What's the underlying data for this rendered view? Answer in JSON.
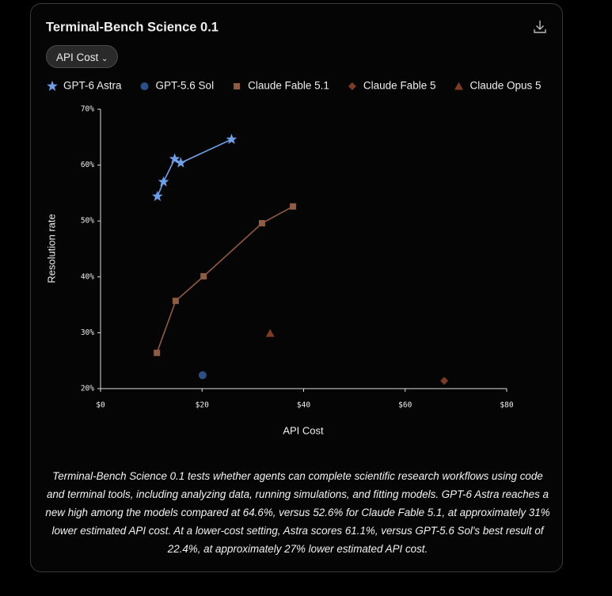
{
  "chart_data": {
    "type": "scatter",
    "title": "Terminal-Bench Science 0.1",
    "xlabel": "API Cost",
    "ylabel": "Resolution rate",
    "xlim": [
      0,
      80
    ],
    "xticks": [
      {
        "value": 0,
        "label": "$0"
      },
      {
        "value": 20,
        "label": "$20"
      },
      {
        "value": 40,
        "label": "$40"
      },
      {
        "value": 60,
        "label": "$60"
      },
      {
        "value": 80,
        "label": "$80"
      }
    ],
    "ylim": [
      20,
      70
    ],
    "yticks": [
      {
        "value": 20,
        "label": "20%"
      },
      {
        "value": 30,
        "label": "30%"
      },
      {
        "value": 40,
        "label": "40%"
      },
      {
        "value": 50,
        "label": "50%"
      },
      {
        "value": 60,
        "label": "60%"
      },
      {
        "value": 70,
        "label": "70%"
      }
    ],
    "grid": false,
    "series": [
      {
        "name": "GPT-6 Astra",
        "color": "#6f9fe6",
        "marker": "star",
        "line": true,
        "x": [
          11.2,
          12.4,
          14.6,
          15.8,
          25.8
        ],
        "values": [
          54.4,
          57.0,
          61.1,
          60.4,
          64.6
        ]
      },
      {
        "name": "GPT-5.6 Sol",
        "color": "#2d4f85",
        "marker": "circle",
        "line": false,
        "x": [
          20.1
        ],
        "values": [
          22.4
        ]
      },
      {
        "name": "Claude Fable 5.1",
        "color": "#8e5b45",
        "marker": "square",
        "line": true,
        "x": [
          11.1,
          14.8,
          20.3,
          31.8,
          37.9
        ],
        "values": [
          26.4,
          35.7,
          40.1,
          49.6,
          52.6
        ]
      },
      {
        "name": "Claude Fable 5",
        "color": "#7d3b26",
        "marker": "diamond",
        "line": false,
        "x": [
          67.7
        ],
        "values": [
          21.4
        ]
      },
      {
        "name": "Claude Opus 5",
        "color": "#7d3b26",
        "marker": "triangle",
        "line": false,
        "x": [
          33.4
        ],
        "values": [
          29.9
        ]
      }
    ]
  },
  "ui": {
    "dropdown": "API Cost",
    "description": "Terminal-Bench Science 0.1 tests whether agents can complete scientific research workflows using code and terminal tools, including analyzing data, running simulations, and fitting models. GPT-6 Astra reaches a new high among the models compared at 64.6%, versus 52.6% for Claude Fable 5.1, at approximately 31% lower estimated API cost. At a lower-cost setting, Astra scores 61.1%, versus GPT-5.6 Sol's best result of 22.4%, at approximately 27% lower estimated API cost."
  }
}
